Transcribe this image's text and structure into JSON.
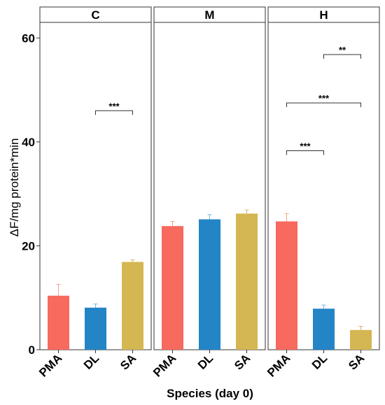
{
  "chart_data": {
    "type": "bar",
    "xlabel": "Species (day 0)",
    "ylabel": "ΔF/mg protein*min",
    "ylim": [
      0,
      63
    ],
    "yticks": [
      0,
      20,
      40,
      60
    ],
    "grid": false,
    "categories": [
      "PMA",
      "DL",
      "SA"
    ],
    "colors": {
      "PMA": "#F8695E",
      "DL": "#2384C6",
      "SA": "#D4B652"
    },
    "error_colors": {
      "PMA": "#F8A08E",
      "DL": "#7FB3DA",
      "SA": "#DBB46A"
    },
    "panels": [
      {
        "label": "C",
        "values": [
          10.4,
          8.1,
          16.9
        ],
        "errors": [
          2.2,
          0.7,
          0.4
        ],
        "significance": [
          {
            "from": "DL",
            "to": "SA",
            "y": 46,
            "label": "***"
          }
        ]
      },
      {
        "label": "M",
        "values": [
          23.8,
          25.1,
          26.2
        ],
        "errors": [
          0.9,
          0.9,
          0.7
        ],
        "significance": []
      },
      {
        "label": "H",
        "values": [
          24.7,
          7.9,
          3.8
        ],
        "errors": [
          1.5,
          0.7,
          0.7
        ],
        "significance": [
          {
            "from": "PMA",
            "to": "DL",
            "y": 38.3,
            "label": "***"
          },
          {
            "from": "PMA",
            "to": "SA",
            "y": 47.5,
            "label": "***"
          },
          {
            "from": "DL",
            "to": "SA",
            "y": 56.8,
            "label": "**"
          }
        ]
      }
    ]
  }
}
